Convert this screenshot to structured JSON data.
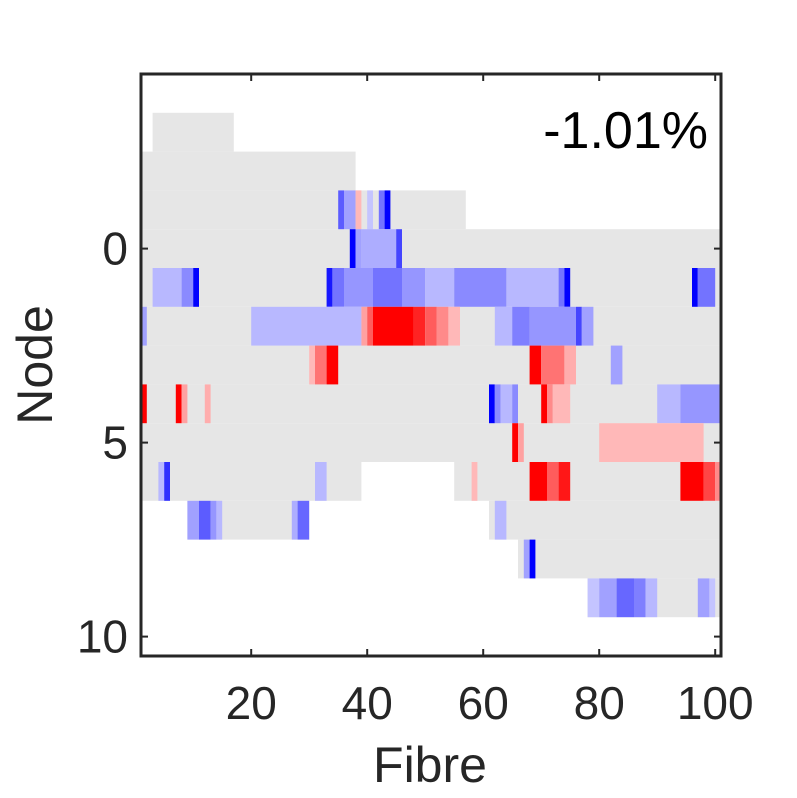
{
  "chart_data": {
    "type": "heatmap",
    "xlabel": "Fibre",
    "ylabel": "Node",
    "annotation": "-1.01%",
    "xlim": [
      1,
      101
    ],
    "ylim": [
      -4.5,
      10.5
    ],
    "x_ticks": [
      20,
      40,
      60,
      80,
      100
    ],
    "y_ticks": [
      0,
      5,
      10
    ],
    "x_tick_labels": [
      "20",
      "40",
      "60",
      "80",
      "100"
    ],
    "y_tick_labels": [
      "0",
      "5",
      "10"
    ],
    "colors": {
      "background_cells": "#e6e6e6",
      "negative": "#0000ff",
      "positive": "#ff0000",
      "axis": "#262626"
    },
    "node_extent": [
      {
        "node": -3,
        "from": 3,
        "to": 17
      },
      {
        "node": -2,
        "from": 1,
        "to": 38
      },
      {
        "node": -1,
        "from": 1,
        "to": 57
      },
      {
        "node": 0,
        "from": 1,
        "to": 101
      },
      {
        "node": 1,
        "from": 1,
        "to": 101
      },
      {
        "node": 2,
        "from": 1,
        "to": 101
      },
      {
        "node": 3,
        "from": 1,
        "to": 101
      },
      {
        "node": 4,
        "from": 1,
        "to": 101
      },
      {
        "node": 5,
        "from": 1,
        "to": 101
      },
      {
        "node": 6,
        "from": 1,
        "to": 39
      },
      {
        "node": 6,
        "from": 55,
        "to": 101
      },
      {
        "node": 7,
        "from": 9,
        "to": 30
      },
      {
        "node": 7,
        "from": 61,
        "to": 101
      },
      {
        "node": 8,
        "from": 66,
        "to": 101
      },
      {
        "node": 9,
        "from": 78,
        "to": 101
      }
    ],
    "cells": [
      {
        "node": -1,
        "from": 35,
        "to": 36,
        "value": -0.6
      },
      {
        "node": -1,
        "from": 36,
        "to": 38,
        "value": -0.3
      },
      {
        "node": -1,
        "from": 38,
        "to": 39,
        "value": 0.2
      },
      {
        "node": -1,
        "from": 40,
        "to": 41,
        "value": -0.15
      },
      {
        "node": -1,
        "from": 42,
        "to": 43,
        "value": -0.5
      },
      {
        "node": -1,
        "from": 43,
        "to": 44,
        "value": -1.0
      },
      {
        "node": 0,
        "from": 37,
        "to": 38,
        "value": -1.0
      },
      {
        "node": 0,
        "from": 38,
        "to": 39,
        "value": -0.3
      },
      {
        "node": 0,
        "from": 39,
        "to": 45,
        "value": -0.25
      },
      {
        "node": 0,
        "from": 45,
        "to": 46,
        "value": -0.7
      },
      {
        "node": 1,
        "from": 3,
        "to": 8,
        "value": -0.2
      },
      {
        "node": 1,
        "from": 8,
        "to": 10,
        "value": -0.4
      },
      {
        "node": 1,
        "from": 10,
        "to": 11,
        "value": -1.0
      },
      {
        "node": 1,
        "from": 33,
        "to": 34,
        "value": -0.9
      },
      {
        "node": 1,
        "from": 34,
        "to": 36,
        "value": -0.5
      },
      {
        "node": 1,
        "from": 36,
        "to": 41,
        "value": -0.35
      },
      {
        "node": 1,
        "from": 41,
        "to": 46,
        "value": -0.5
      },
      {
        "node": 1,
        "from": 46,
        "to": 50,
        "value": -0.35
      },
      {
        "node": 1,
        "from": 50,
        "to": 51,
        "value": -0.2
      },
      {
        "node": 1,
        "from": 51,
        "to": 55,
        "value": -0.2
      },
      {
        "node": 1,
        "from": 55,
        "to": 64,
        "value": -0.4
      },
      {
        "node": 1,
        "from": 64,
        "to": 73,
        "value": -0.2
      },
      {
        "node": 1,
        "from": 73,
        "to": 74,
        "value": -0.5
      },
      {
        "node": 1,
        "from": 74,
        "to": 75,
        "value": -1.0
      },
      {
        "node": 1,
        "from": 96,
        "to": 97,
        "value": -1.0
      },
      {
        "node": 1,
        "from": 97,
        "to": 100,
        "value": -0.5
      },
      {
        "node": 2,
        "from": 1,
        "to": 2,
        "value": -0.3
      },
      {
        "node": 2,
        "from": 20,
        "to": 39,
        "value": -0.2
      },
      {
        "node": 2,
        "from": 39,
        "to": 40,
        "value": 0.3
      },
      {
        "node": 2,
        "from": 40,
        "to": 41,
        "value": 0.6
      },
      {
        "node": 2,
        "from": 41,
        "to": 48,
        "value": 1.0
      },
      {
        "node": 2,
        "from": 48,
        "to": 50,
        "value": 0.85
      },
      {
        "node": 2,
        "from": 50,
        "to": 52,
        "value": 0.6
      },
      {
        "node": 2,
        "from": 52,
        "to": 54,
        "value": 0.4
      },
      {
        "node": 2,
        "from": 54,
        "to": 56,
        "value": 0.2
      },
      {
        "node": 2,
        "from": 62,
        "to": 65,
        "value": -0.2
      },
      {
        "node": 2,
        "from": 65,
        "to": 68,
        "value": -0.45
      },
      {
        "node": 2,
        "from": 68,
        "to": 76,
        "value": -0.35
      },
      {
        "node": 2,
        "from": 76,
        "to": 77,
        "value": -0.7
      },
      {
        "node": 2,
        "from": 77,
        "to": 79,
        "value": -0.3
      },
      {
        "node": 3,
        "from": 30,
        "to": 31,
        "value": 0.2
      },
      {
        "node": 3,
        "from": 31,
        "to": 33,
        "value": 0.5
      },
      {
        "node": 3,
        "from": 33,
        "to": 35,
        "value": 1.0
      },
      {
        "node": 3,
        "from": 68,
        "to": 70,
        "value": 1.0
      },
      {
        "node": 3,
        "from": 70,
        "to": 74,
        "value": 0.5
      },
      {
        "node": 3,
        "from": 74,
        "to": 76,
        "value": 0.25
      },
      {
        "node": 3,
        "from": 82,
        "to": 84,
        "value": -0.3
      },
      {
        "node": 4,
        "from": 1,
        "to": 2,
        "value": 1.0
      },
      {
        "node": 4,
        "from": 7,
        "to": 8,
        "value": 1.0
      },
      {
        "node": 4,
        "from": 8,
        "to": 9,
        "value": 0.3
      },
      {
        "node": 4,
        "from": 12,
        "to": 13,
        "value": 0.25
      },
      {
        "node": 4,
        "from": 61,
        "to": 62,
        "value": -1.0
      },
      {
        "node": 4,
        "from": 62,
        "to": 63,
        "value": -0.4
      },
      {
        "node": 4,
        "from": 63,
        "to": 65,
        "value": -0.2
      },
      {
        "node": 4,
        "from": 65,
        "to": 66,
        "value": -0.4
      },
      {
        "node": 4,
        "from": 70,
        "to": 71,
        "value": 1.0
      },
      {
        "node": 4,
        "from": 71,
        "to": 72,
        "value": 0.4
      },
      {
        "node": 4,
        "from": 72,
        "to": 75,
        "value": 0.2
      },
      {
        "node": 4,
        "from": 90,
        "to": 94,
        "value": -0.2
      },
      {
        "node": 4,
        "from": 94,
        "to": 101,
        "value": -0.35
      },
      {
        "node": 5,
        "from": 65,
        "to": 66,
        "value": 1.0
      },
      {
        "node": 5,
        "from": 66,
        "to": 67,
        "value": 0.3
      },
      {
        "node": 5,
        "from": 80,
        "to": 98,
        "value": 0.2
      },
      {
        "node": 6,
        "from": 4,
        "to": 5,
        "value": -0.2
      },
      {
        "node": 6,
        "from": 5,
        "to": 6,
        "value": -0.8
      },
      {
        "node": 6,
        "from": 31,
        "to": 33,
        "value": -0.2
      },
      {
        "node": 6,
        "from": 58,
        "to": 59,
        "value": 0.2
      },
      {
        "node": 6,
        "from": 68,
        "to": 71,
        "value": 1.0
      },
      {
        "node": 6,
        "from": 71,
        "to": 73,
        "value": 0.6
      },
      {
        "node": 6,
        "from": 73,
        "to": 75,
        "value": 0.9
      },
      {
        "node": 6,
        "from": 94,
        "to": 98,
        "value": 1.0
      },
      {
        "node": 6,
        "from": 98,
        "to": 100,
        "value": 0.7
      },
      {
        "node": 6,
        "from": 100,
        "to": 101,
        "value": 0.4
      },
      {
        "node": 7,
        "from": 9,
        "to": 11,
        "value": -0.3
      },
      {
        "node": 7,
        "from": 11,
        "to": 13,
        "value": -0.6
      },
      {
        "node": 7,
        "from": 13,
        "to": 14,
        "value": -0.35
      },
      {
        "node": 7,
        "from": 14,
        "to": 15,
        "value": -0.2
      },
      {
        "node": 7,
        "from": 27,
        "to": 28,
        "value": -0.25
      },
      {
        "node": 7,
        "from": 28,
        "to": 30,
        "value": -0.55
      },
      {
        "node": 7,
        "from": 62,
        "to": 64,
        "value": -0.2
      },
      {
        "node": 8,
        "from": 67,
        "to": 68,
        "value": -0.3
      },
      {
        "node": 8,
        "from": 68,
        "to": 69,
        "value": -1.0
      },
      {
        "node": 9,
        "from": 78,
        "to": 80,
        "value": -0.15
      },
      {
        "node": 9,
        "from": 80,
        "to": 83,
        "value": -0.3
      },
      {
        "node": 9,
        "from": 83,
        "to": 86,
        "value": -0.55
      },
      {
        "node": 9,
        "from": 86,
        "to": 88,
        "value": -0.45
      },
      {
        "node": 9,
        "from": 88,
        "to": 90,
        "value": -0.2
      },
      {
        "node": 9,
        "from": 97,
        "to": 99,
        "value": -0.3
      },
      {
        "node": 9,
        "from": 99,
        "to": 100,
        "value": -0.15
      }
    ]
  }
}
